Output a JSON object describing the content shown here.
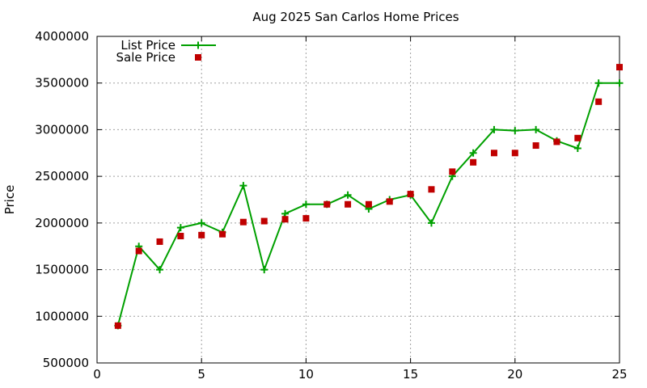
{
  "chart_data": {
    "type": "line",
    "title": "Aug 2025 San Carlos Home Prices",
    "xlabel": "",
    "ylabel": "Price",
    "xlim": [
      0,
      25
    ],
    "ylim": [
      500000,
      4000000
    ],
    "xticks": [
      0,
      5,
      10,
      15,
      20,
      25
    ],
    "yticks": [
      500000,
      1000000,
      1500000,
      2000000,
      2500000,
      3000000,
      3500000,
      4000000
    ],
    "grid": true,
    "legend_position": "top-left",
    "series": [
      {
        "name": "List Price",
        "style": "line-plus",
        "color": "#00a000",
        "x": [
          1,
          2,
          3,
          4,
          5,
          6,
          7,
          8,
          9,
          10,
          11,
          12,
          13,
          14,
          15,
          16,
          17,
          18,
          19,
          20,
          21,
          22,
          23,
          24,
          25
        ],
        "y": [
          900000,
          1750000,
          1500000,
          1950000,
          2000000,
          1900000,
          2400000,
          1500000,
          2100000,
          2200000,
          2200000,
          2300000,
          2150000,
          2250000,
          2300000,
          2000000,
          2500000,
          2750000,
          3000000,
          2990000,
          3000000,
          2880000,
          2800000,
          3500000,
          3500000
        ]
      },
      {
        "name": "Sale Price",
        "style": "square-points",
        "color": "#c00000",
        "x": [
          1,
          2,
          3,
          4,
          5,
          6,
          7,
          8,
          9,
          10,
          11,
          12,
          13,
          14,
          15,
          16,
          17,
          18,
          19,
          20,
          21,
          22,
          23,
          24,
          25
        ],
        "y": [
          900000,
          1700000,
          1800000,
          1860000,
          1870000,
          1880000,
          2010000,
          2020000,
          2040000,
          2050000,
          2200000,
          2200000,
          2200000,
          2230000,
          2310000,
          2360000,
          2550000,
          2650000,
          2750000,
          2750000,
          2830000,
          2870000,
          2910000,
          3300000,
          3670000
        ]
      }
    ]
  }
}
